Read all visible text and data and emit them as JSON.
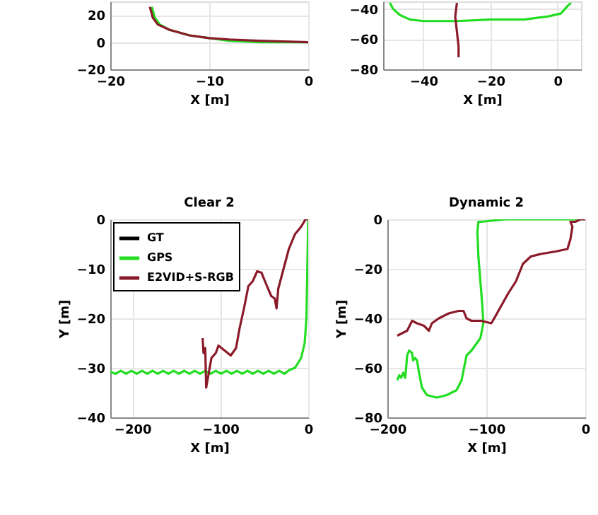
{
  "chart_data": [
    {
      "type": "line",
      "xlabel": "X [m]",
      "xlim": [
        -20,
        0
      ],
      "ylim": [
        -20,
        30
      ],
      "xticks": [
        -20,
        -10,
        0
      ],
      "yticks": [
        -20,
        0,
        20
      ],
      "grid": true,
      "series": [
        {
          "color": "#22dd22",
          "x": [
            -15.8,
            -15.5,
            -15,
            -14,
            -12,
            -10,
            -8,
            -5,
            0
          ],
          "values": [
            26,
            18,
            13,
            9,
            5,
            3,
            1,
            0,
            0
          ]
        },
        {
          "color": "#8b1a2a",
          "x": [
            -16,
            -15.7,
            -15.2,
            -14,
            -12,
            -10,
            -8,
            -5,
            0
          ],
          "values": [
            26,
            18,
            13,
            9,
            5,
            3,
            2,
            1,
            0
          ]
        }
      ]
    },
    {
      "type": "line",
      "xlabel": "X [m]",
      "xlim": [
        -52,
        7
      ],
      "ylim": [
        -80,
        -35
      ],
      "xticks": [
        -40,
        -20,
        0
      ],
      "yticks": [
        -80,
        -60,
        -40
      ],
      "grid": true,
      "series": [
        {
          "color": "#22dd22",
          "x": [
            -50,
            -49,
            -47,
            -44,
            -40,
            -30,
            -20,
            -10,
            -3,
            1,
            3,
            4
          ],
          "values": [
            -36,
            -40,
            -44,
            -47,
            -48,
            -48,
            -47,
            -47,
            -45,
            -43,
            -38,
            -36
          ]
        },
        {
          "color": "#8b1a2a",
          "x": [
            -30,
            -30.5,
            -30,
            -29.5,
            -29.5
          ],
          "values": [
            -36,
            -45,
            -55,
            -65,
            -72
          ]
        }
      ]
    },
    {
      "type": "line",
      "title": "Clear 2",
      "xlabel": "X [m]",
      "ylabel": "Y [m]",
      "xlim": [
        -225,
        0
      ],
      "ylim": [
        -40,
        0
      ],
      "xticks": [
        -200,
        -100,
        0
      ],
      "yticks": [
        -40,
        -30,
        -20,
        -10,
        0
      ],
      "grid": true,
      "legend": "top left",
      "series": [
        {
          "name": "GT",
          "color": "#000000"
        },
        {
          "name": "GPS",
          "color": "#22dd22",
          "x": [
            -225,
            -219,
            -213,
            -207,
            -201,
            -195,
            -189,
            -183,
            -177,
            -171,
            -165,
            -159,
            -153,
            -147,
            -141,
            -135,
            -129,
            -123,
            -117,
            -111,
            -105,
            -99,
            -93,
            -87,
            -81,
            -75,
            -69,
            -63,
            -57,
            -51,
            -45,
            -39,
            -33,
            -27,
            -21,
            -15,
            -8,
            -4,
            -2,
            -1,
            0
          ],
          "values": [
            -30.8,
            -31.2,
            -30.6,
            -31.2,
            -30.6,
            -31.2,
            -30.6,
            -31.2,
            -30.6,
            -31.2,
            -30.6,
            -31.2,
            -30.6,
            -31.2,
            -30.6,
            -31.2,
            -30.6,
            -31.2,
            -30.6,
            -31.2,
            -30.6,
            -31.2,
            -30.6,
            -31.2,
            -30.6,
            -31.2,
            -30.6,
            -31.2,
            -30.6,
            -31.2,
            -30.6,
            -31.2,
            -30.6,
            -31.2,
            -30.4,
            -30,
            -28,
            -25,
            -20,
            -10,
            0
          ]
        },
        {
          "name": "E2VID+S-RGB",
          "color": "#8b1a2a",
          "x": [
            -120,
            -119,
            -117,
            -116,
            -113,
            -110,
            -105,
            -102,
            -95,
            -88,
            -82,
            -78,
            -73,
            -68,
            -63,
            -58,
            -53,
            -48,
            -42,
            -38,
            -36,
            -34,
            -28,
            -22,
            -15,
            -8,
            -3,
            0
          ],
          "values": [
            -24,
            -27,
            -26,
            -34,
            -31,
            -28,
            -27,
            -25.5,
            -26.5,
            -27.5,
            -26,
            -22,
            -18,
            -13.5,
            -12.5,
            -10.5,
            -10.8,
            -13,
            -15.5,
            -16,
            -18,
            -14,
            -10,
            -6,
            -3,
            -1.5,
            0,
            0
          ]
        }
      ]
    },
    {
      "type": "line",
      "title": "Dynamic 2",
      "xlabel": "X [m]",
      "ylabel": "Y [m]",
      "xlim": [
        -200,
        0
      ],
      "ylim": [
        -80,
        0
      ],
      "xticks": [
        -200,
        -100,
        0
      ],
      "yticks": [
        -80,
        -60,
        -40,
        -20,
        0
      ],
      "grid": true,
      "series": [
        {
          "color": "#22dd22",
          "x": [
            -190,
            -188,
            -186,
            -184,
            -182,
            -181,
            -180,
            -178,
            -175,
            -174,
            -172,
            -170,
            -168,
            -165,
            -160,
            -150,
            -140,
            -130,
            -125,
            -120,
            -115,
            -106,
            -103,
            -104,
            -106,
            -108,
            -109,
            -108,
            -105,
            -80,
            -40,
            -15,
            0
          ],
          "values": [
            -65,
            -63,
            -64,
            -62,
            -64,
            -60,
            -55,
            -53,
            -54,
            -57,
            -56,
            -57,
            -62,
            -68,
            -71,
            -72,
            -71,
            -69,
            -65,
            -55,
            -53,
            -48,
            -42,
            -35,
            -25,
            -15,
            -5,
            -1,
            -1,
            0,
            0,
            0,
            0
          ]
        },
        {
          "color": "#8b1a2a",
          "x": [
            -190,
            -185,
            -180,
            -175,
            -170,
            -163,
            -158,
            -155,
            -148,
            -138,
            -128,
            -123,
            -120,
            -115,
            -105,
            -95,
            -92,
            -85,
            -78,
            -70,
            -63,
            -55,
            -45,
            -30,
            -18,
            -15,
            -13,
            -15,
            -10,
            -5,
            0
          ],
          "values": [
            -47,
            -46,
            -45,
            -41,
            -42,
            -43,
            -45,
            -42,
            -40,
            -38,
            -37,
            -37,
            -40,
            -41,
            -41,
            -42,
            -40,
            -35,
            -30,
            -25,
            -18,
            -15,
            -14,
            -13,
            -12,
            -8,
            -3,
            -1,
            -1,
            0,
            0
          ]
        }
      ]
    }
  ]
}
